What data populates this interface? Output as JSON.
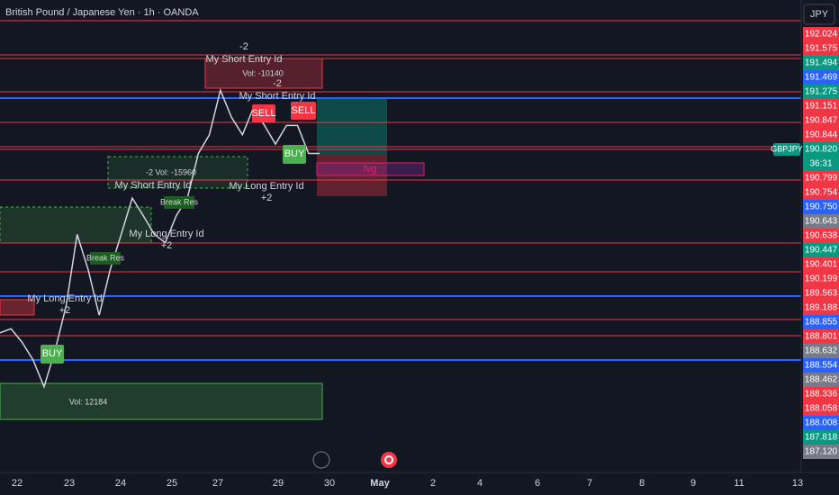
{
  "header": {
    "title": "British Pound / Japanese Yen · 1h · OANDA",
    "currency": "JPY"
  },
  "symbol_tag": "GBPJPY",
  "price_labels": [
    {
      "text": "192.024",
      "color": "#f23645"
    },
    {
      "text": "191.575",
      "color": "#f23645"
    },
    {
      "text": "191.494",
      "color": "#089981"
    },
    {
      "text": "191.469",
      "color": "#2962ff"
    },
    {
      "text": "191.275",
      "color": "#089981"
    },
    {
      "text": "191.151",
      "color": "#f23645"
    },
    {
      "text": "190.847",
      "color": "#f23645"
    },
    {
      "text": "190.844",
      "color": "#f23645"
    },
    {
      "text": "190.820",
      "color": "#089981"
    },
    {
      "text": "36:31",
      "color": "#089981"
    },
    {
      "text": "190.799",
      "color": "#f23645"
    },
    {
      "text": "190.754",
      "color": "#f23645"
    },
    {
      "text": "190.750",
      "color": "#2962ff"
    },
    {
      "text": "190.643",
      "color": "#787b86"
    },
    {
      "text": "190.638",
      "color": "#f23645"
    },
    {
      "text": "190.447",
      "color": "#089981"
    },
    {
      "text": "190.401",
      "color": "#f23645"
    },
    {
      "text": "190.199",
      "color": "#f23645"
    },
    {
      "text": "189.563",
      "color": "#f23645"
    },
    {
      "text": "189.188",
      "color": "#f23645"
    },
    {
      "text": "188.855",
      "color": "#2962ff"
    },
    {
      "text": "188.801",
      "color": "#f23645"
    },
    {
      "text": "188.632",
      "color": "#787b86"
    },
    {
      "text": "188.554",
      "color": "#2962ff"
    },
    {
      "text": "188.462",
      "color": "#787b86"
    },
    {
      "text": "188.336",
      "color": "#f23645"
    },
    {
      "text": "188.058",
      "color": "#f23645"
    },
    {
      "text": "188.008",
      "color": "#2962ff"
    },
    {
      "text": "187.818",
      "color": "#089981"
    },
    {
      "text": "187.120",
      "color": "#787b86"
    }
  ],
  "date_labels": [
    "22",
    "23",
    "24",
    "25",
    "27",
    "29",
    "30",
    "May",
    "2",
    "4",
    "6",
    "7",
    "8",
    "9",
    "11",
    "13"
  ],
  "annotations": [
    "-2",
    "My Short Entry Id",
    "Vol: -10140",
    "-2",
    "My Short Entry Id",
    "SELL",
    "SELL",
    "BUY",
    "-2  Vol: -15960",
    "My Short Entry Id",
    "My Long Entry Id",
    "+2",
    "Break Res",
    "Break Res",
    "My Long Entry Id",
    "+2",
    "My Long Entry Id",
    "+2",
    "BUY",
    "Vol: 12184",
    "fvg"
  ],
  "chart_data": {
    "type": "line",
    "color": "#d1d4dc",
    "ylim": [
      187.5,
      192.1
    ],
    "values": [
      188.89,
      188.93,
      188.8,
      188.63,
      188.37,
      188.72,
      189.15,
      189.84,
      189.5,
      189.06,
      189.5,
      189.84,
      190.19,
      190.02,
      189.84,
      189.76,
      190.02,
      190.19,
      190.62,
      190.8,
      191.23,
      190.97,
      190.8,
      191.06,
      190.89,
      190.71,
      190.89,
      190.89,
      190.62,
      190.62
    ]
  }
}
